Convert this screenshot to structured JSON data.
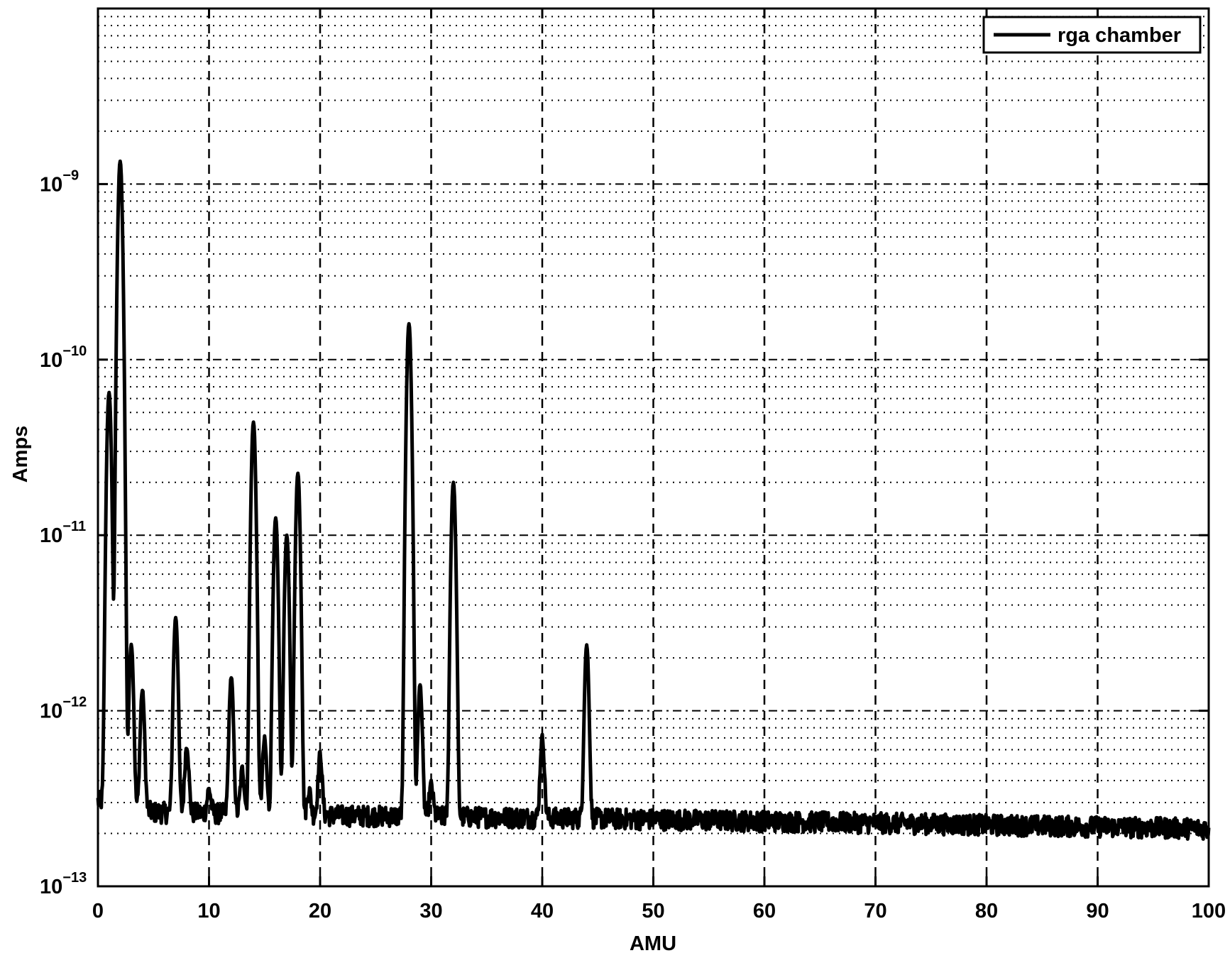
{
  "chart_data": {
    "type": "line",
    "xlabel": "AMU",
    "ylabel": "Amps",
    "xlim": [
      0,
      100
    ],
    "ylim": [
      1e-13,
      1e-08
    ],
    "yscale": "log",
    "grid": true,
    "legend_position": "top-right",
    "x_ticks": [
      "0",
      "10",
      "20",
      "30",
      "40",
      "50",
      "60",
      "70",
      "80",
      "90",
      "100"
    ],
    "y_ticks": [
      {
        "base": "10",
        "exp": "−13"
      },
      {
        "base": "10",
        "exp": "−12"
      },
      {
        "base": "10",
        "exp": "−11"
      },
      {
        "base": "10",
        "exp": "−10"
      },
      {
        "base": "10",
        "exp": "−9"
      }
    ],
    "series": [
      {
        "name": "rga chamber",
        "color": "#000000",
        "baseline": [
          [
            0,
            3e-13
          ],
          [
            5,
            2.6e-13
          ],
          [
            20,
            2.5e-13
          ],
          [
            45,
            2.4e-13
          ],
          [
            100,
            2.1e-13
          ]
        ],
        "peaks": [
          {
            "x": 1,
            "y": 6.5e-11
          },
          {
            "x": 2,
            "y": 1.35e-09
          },
          {
            "x": 3,
            "y": 2.4e-12
          },
          {
            "x": 4,
            "y": 1.3e-12
          },
          {
            "x": 7,
            "y": 3.4e-12
          },
          {
            "x": 8,
            "y": 6.3e-13
          },
          {
            "x": 10,
            "y": 3.5e-13
          },
          {
            "x": 12,
            "y": 1.55e-12
          },
          {
            "x": 13,
            "y": 4.6e-13
          },
          {
            "x": 14,
            "y": 4.4e-11
          },
          {
            "x": 15,
            "y": 6.8e-13
          },
          {
            "x": 16,
            "y": 1.25e-11
          },
          {
            "x": 17,
            "y": 1e-11
          },
          {
            "x": 18,
            "y": 2.25e-11
          },
          {
            "x": 19,
            "y": 3.5e-13
          },
          {
            "x": 20,
            "y": 5.6e-13
          },
          {
            "x": 28,
            "y": 1.6e-10
          },
          {
            "x": 29,
            "y": 1.4e-12
          },
          {
            "x": 30,
            "y": 3.7e-13
          },
          {
            "x": 32,
            "y": 2e-11
          },
          {
            "x": 40,
            "y": 7e-13
          },
          {
            "x": 44,
            "y": 2.35e-12
          }
        ]
      }
    ]
  }
}
